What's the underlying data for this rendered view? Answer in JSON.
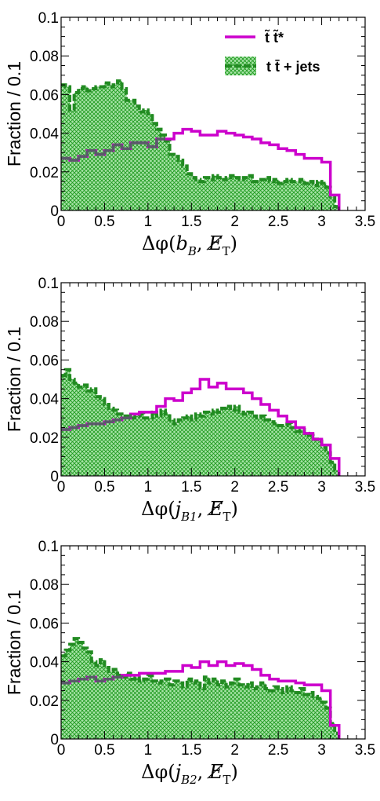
{
  "colors": {
    "signal": "#cc00cc",
    "background_line": "#228b22",
    "background_fill": "#8fd88f",
    "overlap_line": "#5a5a6a"
  },
  "legend": {
    "signal_label": "t̃ t̃*",
    "background_label": "t t̄ + jets"
  },
  "chart_data": [
    {
      "type": "line",
      "ylabel": "Fraction / 0.1",
      "xlabel": {
        "prefix": "Δφ(",
        "var": "b",
        "sub": "B",
        "sep": ", ",
        "met": "E̸",
        "met_sub": "T",
        "suffix": ")"
      },
      "xlim": [
        0,
        3.5
      ],
      "ylim": [
        0,
        0.1
      ],
      "x_ticks": [
        "0",
        "0.5",
        "1",
        "1.5",
        "2",
        "2.5",
        "3",
        "3.5"
      ],
      "y_ticks": [
        "0",
        "0.02",
        "0.04",
        "0.06",
        "0.08",
        "0.1"
      ],
      "legend_position": "top-right",
      "series": [
        {
          "name": "t̃ t̃*",
          "style": "step-line",
          "x": [
            0,
            0.1,
            0.2,
            0.3,
            0.4,
            0.5,
            0.6,
            0.7,
            0.8,
            0.9,
            1.0,
            1.1,
            1.2,
            1.3,
            1.4,
            1.5,
            1.6,
            1.7,
            1.8,
            1.9,
            2.0,
            2.1,
            2.2,
            2.3,
            2.4,
            2.5,
            2.6,
            2.7,
            2.8,
            2.9,
            3.0,
            3.1
          ],
          "y": [
            0.027,
            0.026,
            0.028,
            0.031,
            0.029,
            0.031,
            0.034,
            0.032,
            0.035,
            0.035,
            0.033,
            0.037,
            0.037,
            0.04,
            0.042,
            0.041,
            0.039,
            0.039,
            0.041,
            0.04,
            0.039,
            0.038,
            0.037,
            0.035,
            0.034,
            0.032,
            0.031,
            0.029,
            0.027,
            0.027,
            0.025,
            0.008
          ]
        },
        {
          "name": "t t̄ + jets",
          "style": "hatched-area",
          "x": [
            0,
            0.05,
            0.1,
            0.15,
            0.2,
            0.25,
            0.3,
            0.35,
            0.4,
            0.45,
            0.5,
            0.55,
            0.6,
            0.65,
            0.7,
            0.75,
            0.8,
            0.85,
            0.9,
            0.95,
            1.0,
            1.05,
            1.1,
            1.15,
            1.2,
            1.25,
            1.3,
            1.35,
            1.4,
            1.45,
            1.5,
            1.55,
            1.6,
            1.65,
            1.7,
            1.75,
            1.8,
            1.85,
            1.9,
            1.95,
            2.0,
            2.05,
            2.1,
            2.15,
            2.2,
            2.25,
            2.3,
            2.35,
            2.4,
            2.45,
            2.5,
            2.55,
            2.6,
            2.65,
            2.7,
            2.75,
            2.8,
            2.85,
            2.9,
            2.95,
            3.0,
            3.05,
            3.1,
            3.15
          ],
          "y": [
            0.065,
            0.064,
            0.052,
            0.061,
            0.063,
            0.064,
            0.062,
            0.063,
            0.064,
            0.064,
            0.066,
            0.064,
            0.065,
            0.067,
            0.063,
            0.057,
            0.057,
            0.054,
            0.051,
            0.052,
            0.05,
            0.045,
            0.042,
            0.039,
            0.036,
            0.029,
            0.028,
            0.026,
            0.023,
            0.019,
            0.017,
            0.016,
            0.015,
            0.017,
            0.016,
            0.018,
            0.017,
            0.016,
            0.017,
            0.018,
            0.017,
            0.016,
            0.017,
            0.018,
            0.015,
            0.015,
            0.016,
            0.017,
            0.015,
            0.016,
            0.014,
            0.015,
            0.016,
            0.015,
            0.015,
            0.016,
            0.014,
            0.015,
            0.013,
            0.015,
            0.014,
            0.012,
            0.007,
            0.002
          ]
        }
      ]
    },
    {
      "type": "line",
      "ylabel": "Fraction / 0.1",
      "xlabel": {
        "prefix": "Δφ(",
        "var": "j",
        "sub": "B1",
        "sep": ", ",
        "met": "E̸",
        "met_sub": "T",
        "suffix": ")"
      },
      "xlim": [
        0,
        3.5
      ],
      "ylim": [
        0,
        0.1
      ],
      "x_ticks": [
        "0",
        "0.5",
        "1",
        "1.5",
        "2",
        "2.5",
        "3",
        "3.5"
      ],
      "y_ticks": [
        "0",
        "0.02",
        "0.04",
        "0.06",
        "0.08",
        "0.1"
      ],
      "series": [
        {
          "name": "t̃ t̃*",
          "style": "step-line",
          "x": [
            0,
            0.1,
            0.2,
            0.3,
            0.4,
            0.5,
            0.6,
            0.7,
            0.8,
            0.9,
            1.0,
            1.1,
            1.2,
            1.3,
            1.4,
            1.5,
            1.6,
            1.7,
            1.8,
            1.9,
            2.0,
            2.1,
            2.2,
            2.3,
            2.4,
            2.5,
            2.6,
            2.7,
            2.8,
            2.9,
            3.0,
            3.1
          ],
          "y": [
            0.024,
            0.025,
            0.026,
            0.027,
            0.027,
            0.028,
            0.029,
            0.03,
            0.032,
            0.033,
            0.033,
            0.036,
            0.04,
            0.039,
            0.043,
            0.045,
            0.05,
            0.046,
            0.048,
            0.045,
            0.045,
            0.043,
            0.04,
            0.037,
            0.034,
            0.031,
            0.028,
            0.025,
            0.022,
            0.019,
            0.016,
            0.009
          ]
        },
        {
          "name": "t t̄ + jets",
          "style": "hatched-area",
          "x": [
            0,
            0.05,
            0.1,
            0.15,
            0.2,
            0.25,
            0.3,
            0.35,
            0.4,
            0.45,
            0.5,
            0.55,
            0.6,
            0.65,
            0.7,
            0.75,
            0.8,
            0.85,
            0.9,
            0.95,
            1.0,
            1.05,
            1.1,
            1.15,
            1.2,
            1.25,
            1.3,
            1.35,
            1.4,
            1.45,
            1.5,
            1.55,
            1.6,
            1.65,
            1.7,
            1.75,
            1.8,
            1.85,
            1.9,
            1.95,
            2.0,
            2.05,
            2.1,
            2.15,
            2.2,
            2.25,
            2.3,
            2.35,
            2.4,
            2.45,
            2.5,
            2.55,
            2.6,
            2.65,
            2.7,
            2.75,
            2.8,
            2.85,
            2.9,
            2.95,
            3.0,
            3.05,
            3.1,
            3.15
          ],
          "y": [
            0.052,
            0.055,
            0.05,
            0.048,
            0.046,
            0.047,
            0.044,
            0.045,
            0.041,
            0.04,
            0.037,
            0.035,
            0.034,
            0.032,
            0.031,
            0.031,
            0.03,
            0.031,
            0.032,
            0.03,
            0.03,
            0.033,
            0.031,
            0.034,
            0.032,
            0.029,
            0.027,
            0.029,
            0.03,
            0.031,
            0.029,
            0.032,
            0.031,
            0.033,
            0.032,
            0.034,
            0.033,
            0.035,
            0.036,
            0.034,
            0.036,
            0.033,
            0.032,
            0.033,
            0.031,
            0.03,
            0.031,
            0.029,
            0.028,
            0.027,
            0.026,
            0.026,
            0.027,
            0.025,
            0.023,
            0.024,
            0.022,
            0.021,
            0.019,
            0.018,
            0.015,
            0.012,
            0.007,
            0.003
          ]
        }
      ]
    },
    {
      "type": "line",
      "ylabel": "Fraction / 0.1",
      "xlabel": {
        "prefix": "Δφ(",
        "var": "j",
        "sub": "B2",
        "sep": ", ",
        "met": "E̸",
        "met_sub": "T",
        "suffix": ")"
      },
      "xlim": [
        0,
        3.5
      ],
      "ylim": [
        0,
        0.1
      ],
      "x_ticks": [
        "0",
        "0.5",
        "1",
        "1.5",
        "2",
        "2.5",
        "3",
        "3.5"
      ],
      "y_ticks": [
        "0",
        "0.02",
        "0.04",
        "0.06",
        "0.08",
        "0.1"
      ],
      "series": [
        {
          "name": "t̃ t̃*",
          "style": "step-line",
          "x": [
            0,
            0.1,
            0.2,
            0.3,
            0.4,
            0.5,
            0.6,
            0.7,
            0.8,
            0.9,
            1.0,
            1.1,
            1.2,
            1.3,
            1.4,
            1.5,
            1.6,
            1.7,
            1.8,
            1.9,
            2.0,
            2.1,
            2.2,
            2.3,
            2.4,
            2.5,
            2.6,
            2.7,
            2.8,
            2.9,
            3.0,
            3.1
          ],
          "y": [
            0.029,
            0.03,
            0.031,
            0.032,
            0.03,
            0.031,
            0.032,
            0.033,
            0.033,
            0.034,
            0.034,
            0.034,
            0.035,
            0.035,
            0.038,
            0.037,
            0.04,
            0.038,
            0.04,
            0.038,
            0.039,
            0.038,
            0.036,
            0.033,
            0.031,
            0.03,
            0.03,
            0.029,
            0.028,
            0.028,
            0.025,
            0.007
          ]
        },
        {
          "name": "t t̄ + jets",
          "style": "hatched-area",
          "x": [
            0,
            0.05,
            0.1,
            0.15,
            0.2,
            0.25,
            0.3,
            0.35,
            0.4,
            0.45,
            0.5,
            0.55,
            0.6,
            0.65,
            0.7,
            0.75,
            0.8,
            0.85,
            0.9,
            0.95,
            1.0,
            1.05,
            1.1,
            1.15,
            1.2,
            1.25,
            1.3,
            1.35,
            1.4,
            1.45,
            1.5,
            1.55,
            1.6,
            1.65,
            1.7,
            1.75,
            1.8,
            1.85,
            1.9,
            1.95,
            2.0,
            2.05,
            2.1,
            2.15,
            2.2,
            2.25,
            2.3,
            2.35,
            2.4,
            2.45,
            2.5,
            2.55,
            2.6,
            2.65,
            2.7,
            2.75,
            2.8,
            2.85,
            2.9,
            2.95,
            3.0,
            3.05,
            3.1,
            3.15
          ],
          "y": [
            0.043,
            0.046,
            0.049,
            0.052,
            0.05,
            0.047,
            0.045,
            0.04,
            0.038,
            0.041,
            0.037,
            0.035,
            0.036,
            0.033,
            0.032,
            0.034,
            0.031,
            0.032,
            0.03,
            0.031,
            0.033,
            0.03,
            0.029,
            0.03,
            0.031,
            0.028,
            0.03,
            0.029,
            0.027,
            0.031,
            0.029,
            0.03,
            0.026,
            0.032,
            0.029,
            0.031,
            0.028,
            0.03,
            0.027,
            0.029,
            0.031,
            0.028,
            0.027,
            0.029,
            0.026,
            0.027,
            0.029,
            0.026,
            0.025,
            0.027,
            0.026,
            0.024,
            0.027,
            0.025,
            0.024,
            0.026,
            0.023,
            0.024,
            0.022,
            0.021,
            0.019,
            0.016,
            0.008,
            0.003
          ]
        }
      ]
    }
  ]
}
